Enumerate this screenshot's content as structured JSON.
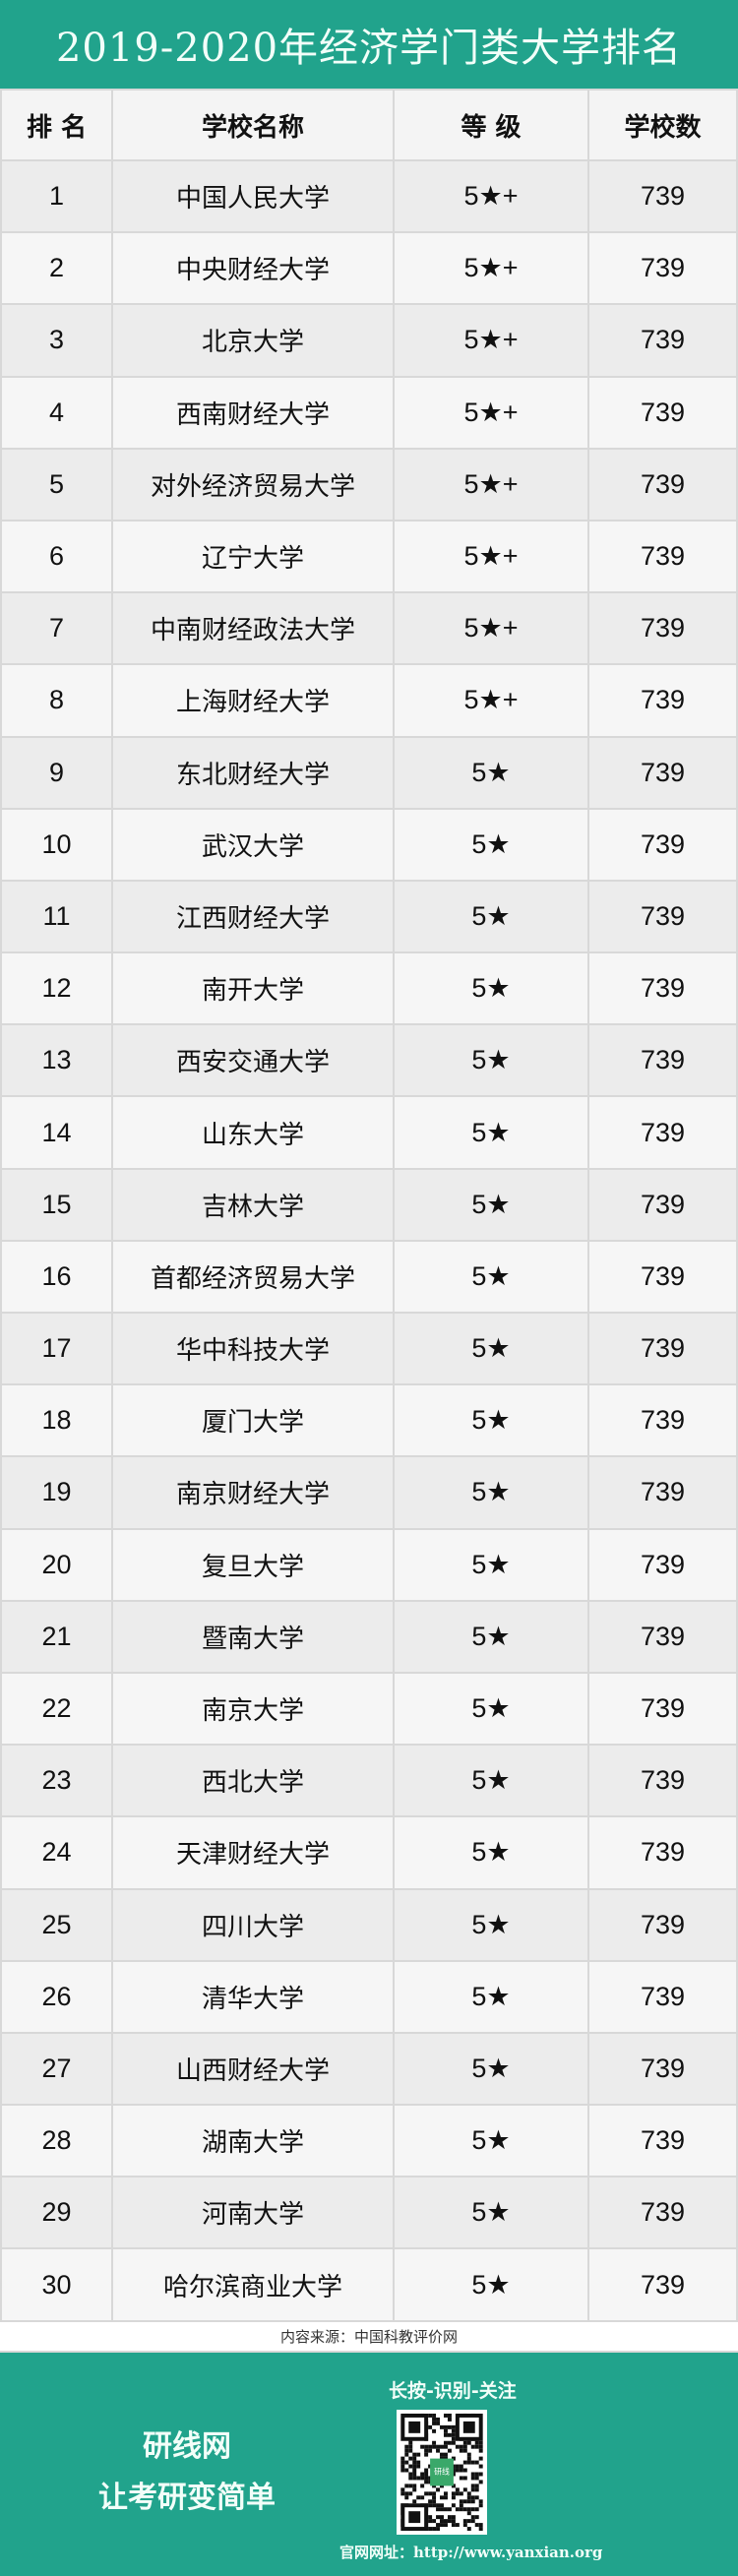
{
  "title": "2019-2020年经济学门类大学排名",
  "headers": [
    "排 名",
    "学校名称",
    "等 级",
    "学校数"
  ],
  "rows": [
    [
      "1",
      "中国人民大学",
      "5★+",
      "739"
    ],
    [
      "2",
      "中央财经大学",
      "5★+",
      "739"
    ],
    [
      "3",
      "北京大学",
      "5★+",
      "739"
    ],
    [
      "4",
      "西南财经大学",
      "5★+",
      "739"
    ],
    [
      "5",
      "对外经济贸易大学",
      "5★+",
      "739"
    ],
    [
      "6",
      "辽宁大学",
      "5★+",
      "739"
    ],
    [
      "7",
      "中南财经政法大学",
      "5★+",
      "739"
    ],
    [
      "8",
      "上海财经大学",
      "5★+",
      "739"
    ],
    [
      "9",
      "东北财经大学",
      "5★",
      "739"
    ],
    [
      "10",
      "武汉大学",
      "5★",
      "739"
    ],
    [
      "11",
      "江西财经大学",
      "5★",
      "739"
    ],
    [
      "12",
      "南开大学",
      "5★",
      "739"
    ],
    [
      "13",
      "西安交通大学",
      "5★",
      "739"
    ],
    [
      "14",
      "山东大学",
      "5★",
      "739"
    ],
    [
      "15",
      "吉林大学",
      "5★",
      "739"
    ],
    [
      "16",
      "首都经济贸易大学",
      "5★",
      "739"
    ],
    [
      "17",
      "华中科技大学",
      "5★",
      "739"
    ],
    [
      "18",
      "厦门大学",
      "5★",
      "739"
    ],
    [
      "19",
      "南京财经大学",
      "5★",
      "739"
    ],
    [
      "20",
      "复旦大学",
      "5★",
      "739"
    ],
    [
      "21",
      "暨南大学",
      "5★",
      "739"
    ],
    [
      "22",
      "南京大学",
      "5★",
      "739"
    ],
    [
      "23",
      "西北大学",
      "5★",
      "739"
    ],
    [
      "24",
      "天津财经大学",
      "5★",
      "739"
    ],
    [
      "25",
      "四川大学",
      "5★",
      "739"
    ],
    [
      "26",
      "清华大学",
      "5★",
      "739"
    ],
    [
      "27",
      "山西财经大学",
      "5★",
      "739"
    ],
    [
      "28",
      "湖南大学",
      "5★",
      "739"
    ],
    [
      "29",
      "河南大学",
      "5★",
      "739"
    ],
    [
      "30",
      "哈尔滨商业大学",
      "5★",
      "739"
    ]
  ],
  "source": "内容来源：中国科教评价网",
  "footer": {
    "slogan_line1": "研线网",
    "slogan_line2": "让考研变简单",
    "scan_prompt": "长按-识别-关注",
    "qr_logo_text": "研线",
    "website": "官网网址：http://www.yanxian.org"
  },
  "colors": {
    "brand": "#21a38c"
  }
}
